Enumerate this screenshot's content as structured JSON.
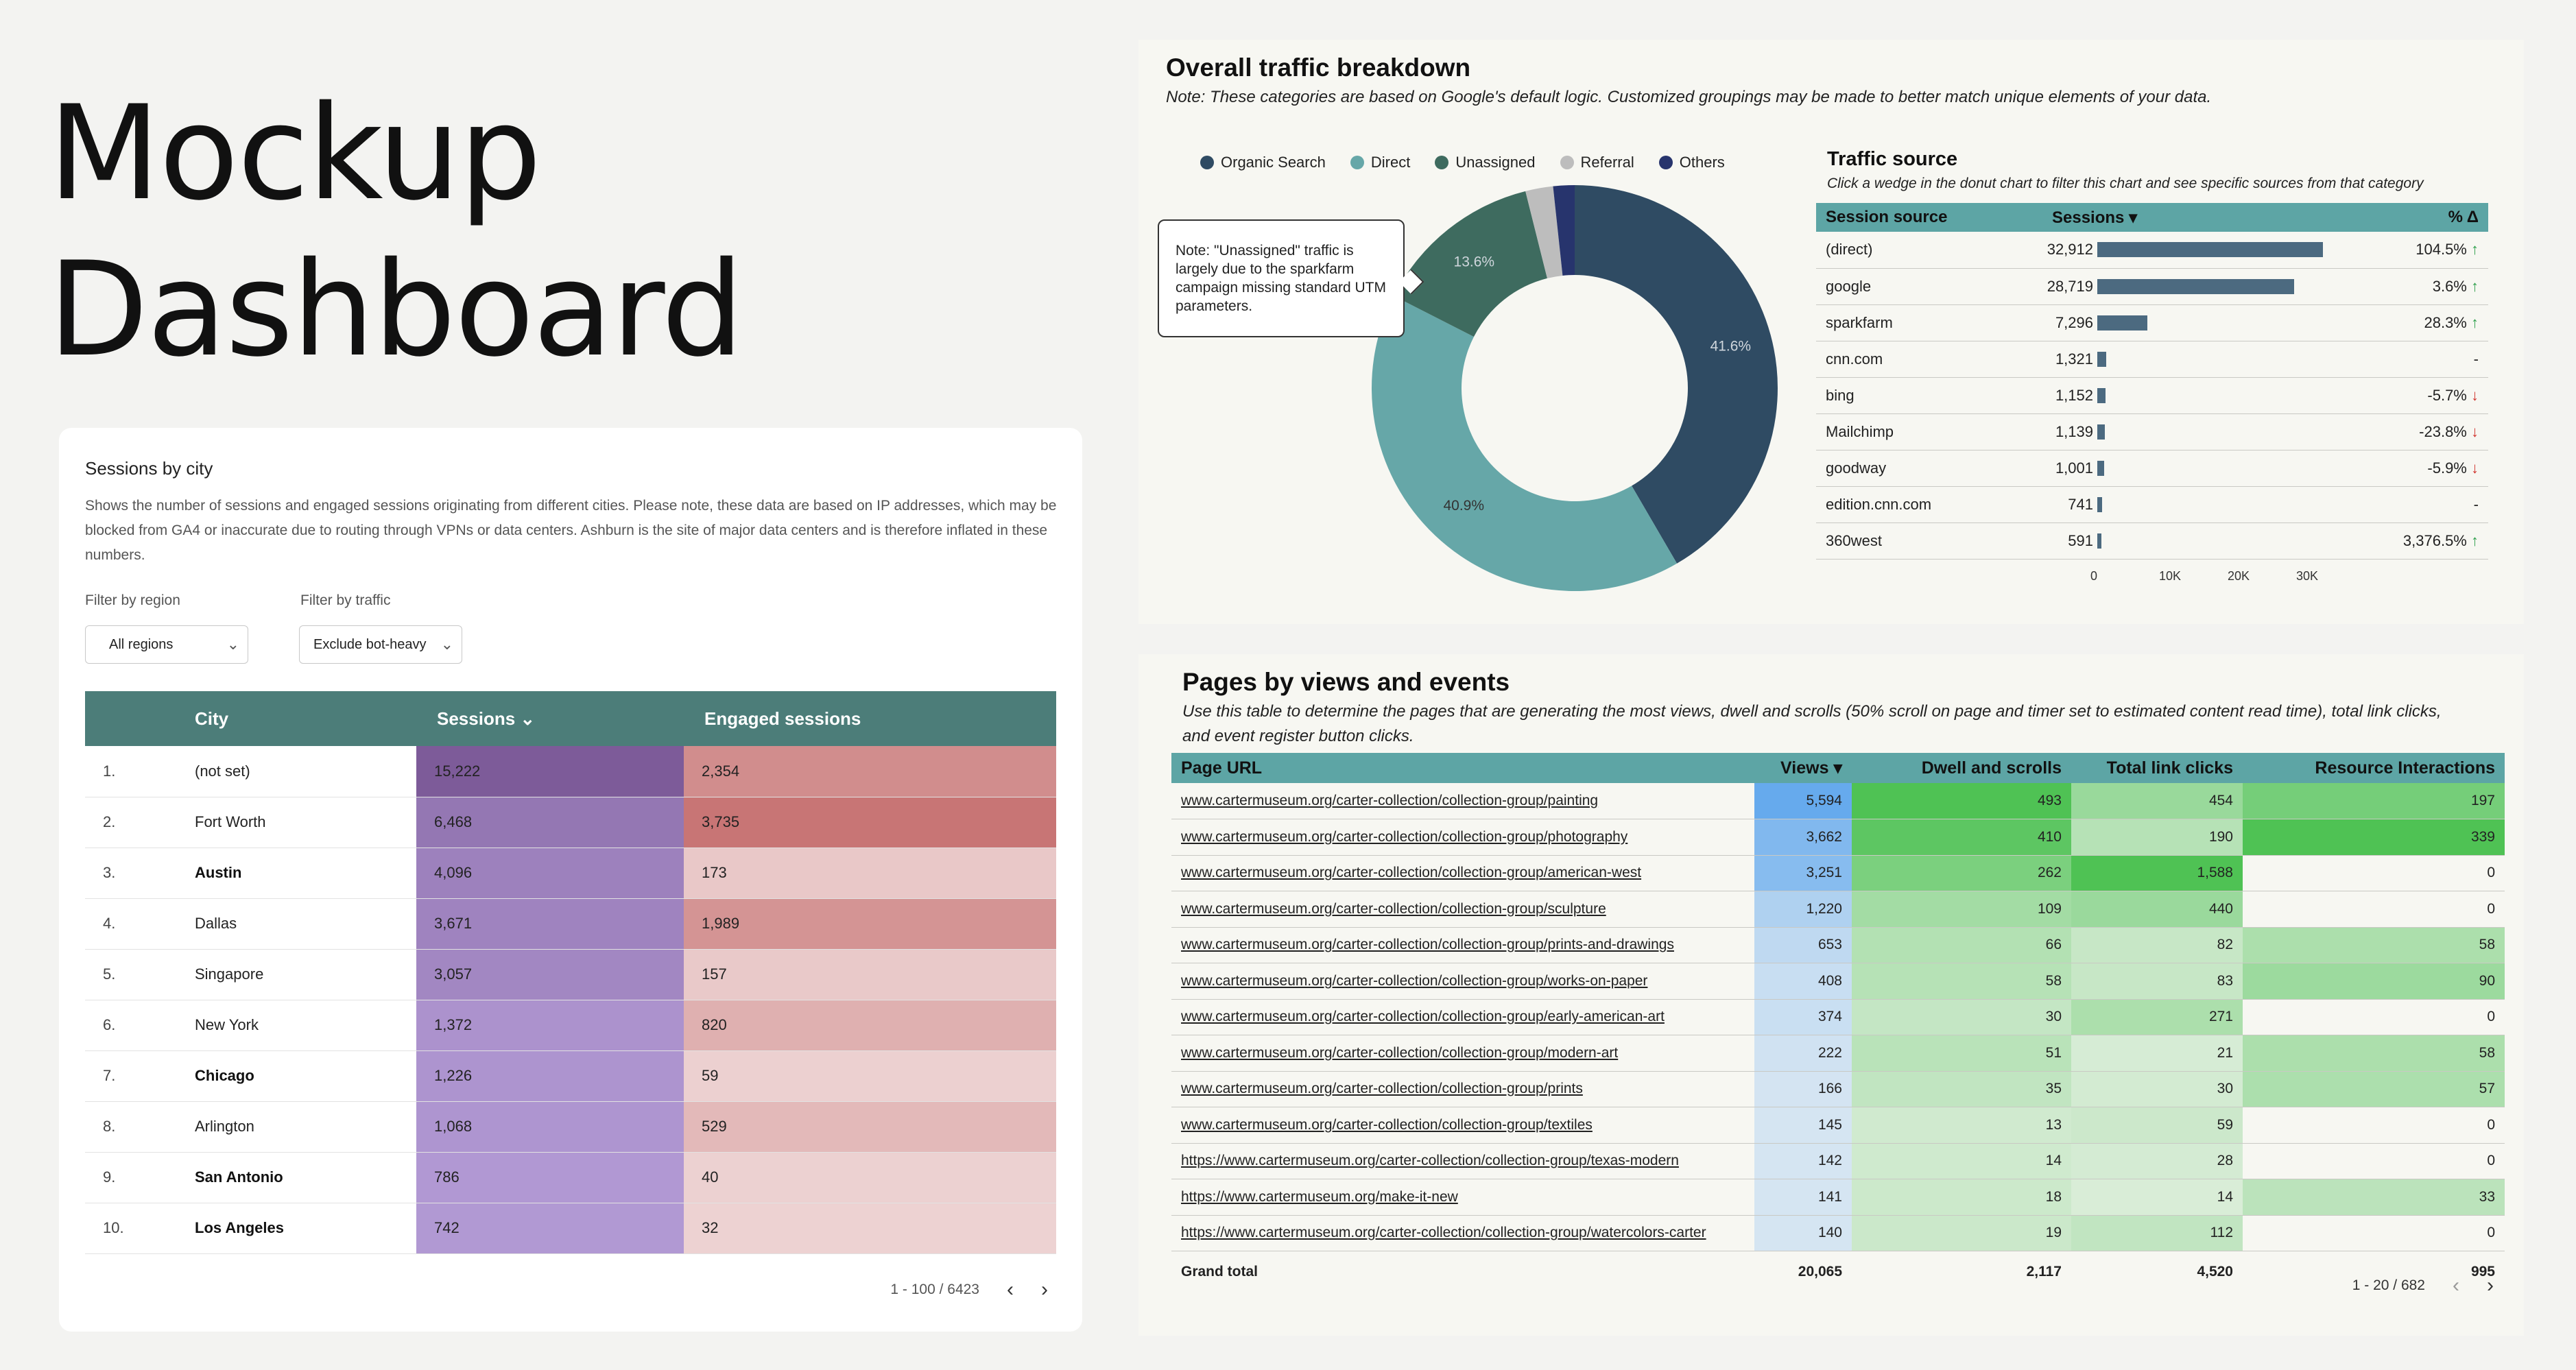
{
  "hero": {
    "line1": "Mockup",
    "line2": "Dashboard"
  },
  "city": {
    "title": "Sessions by city",
    "description": "Shows the number of sessions and engaged sessions originating from different cities. Please note, these data are based on IP addresses, which may be blocked from GA4 or inaccurate due to routing through VPNs or data centers. Ashburn is the site of major data centers and is therefore inflated in these numbers.",
    "filter_region_label": "Filter by region",
    "filter_region_value": "All regions",
    "filter_traffic_label": "Filter by traffic",
    "filter_traffic_value": "Exclude bot-heavy",
    "columns": {
      "city": "City",
      "sessions": "Sessions",
      "engaged": "Engaged sessions"
    },
    "rows": [
      {
        "num": "1.",
        "city": "(not set)",
        "sessions": "15,222",
        "engaged": "2,354",
        "bold": false
      },
      {
        "num": "2.",
        "city": "Fort Worth",
        "sessions": "6,468",
        "engaged": "3,735",
        "bold": false
      },
      {
        "num": "3.",
        "city": "Austin",
        "sessions": "4,096",
        "engaged": "173",
        "bold": true
      },
      {
        "num": "4.",
        "city": "Dallas",
        "sessions": "3,671",
        "engaged": "1,989",
        "bold": false
      },
      {
        "num": "5.",
        "city": "Singapore",
        "sessions": "3,057",
        "engaged": "157",
        "bold": false
      },
      {
        "num": "6.",
        "city": "New York",
        "sessions": "1,372",
        "engaged": "820",
        "bold": false
      },
      {
        "num": "7.",
        "city": "Chicago",
        "sessions": "1,226",
        "engaged": "59",
        "bold": true
      },
      {
        "num": "8.",
        "city": "Arlington",
        "sessions": "1,068",
        "engaged": "529",
        "bold": false
      },
      {
        "num": "9.",
        "city": "San Antonio",
        "sessions": "786",
        "engaged": "40",
        "bold": true
      },
      {
        "num": "10.",
        "city": "Los Angeles",
        "sessions": "742",
        "engaged": "32",
        "bold": true
      }
    ],
    "pagination": "1 - 100 / 6423",
    "colors": {
      "header": "#4c7d79"
    }
  },
  "traffic": {
    "title": "Overall traffic breakdown",
    "note": "Note: These categories are based on Google's default logic. Customized groupings may be made to better match unique elements of your data.",
    "callout": "Note: \"Unassigned\" traffic is largely due to the sparkfarm campaign missing standard UTM parameters.",
    "source_title": "Traffic source",
    "source_subtitle": "Click a wedge in the donut chart to filter this chart and see specific sources from that category",
    "source_columns": {
      "source": "Session source",
      "sessions": "Sessions",
      "pct": "% Δ"
    },
    "sources": [
      {
        "name": "(direct)",
        "sessions": "32,912",
        "value": 32912,
        "pct": "104.5%",
        "dir": "up"
      },
      {
        "name": "google",
        "sessions": "28,719",
        "value": 28719,
        "pct": "3.6%",
        "dir": "up"
      },
      {
        "name": "sparkfarm",
        "sessions": "7,296",
        "value": 7296,
        "pct": "28.3%",
        "dir": "up"
      },
      {
        "name": "cnn.com",
        "sessions": "1,321",
        "value": 1321,
        "pct": "-",
        "dir": ""
      },
      {
        "name": "bing",
        "sessions": "1,152",
        "value": 1152,
        "pct": "-5.7%",
        "dir": "down"
      },
      {
        "name": "Mailchimp",
        "sessions": "1,139",
        "value": 1139,
        "pct": "-23.8%",
        "dir": "down"
      },
      {
        "name": "goodway",
        "sessions": "1,001",
        "value": 1001,
        "pct": "-5.9%",
        "dir": "down"
      },
      {
        "name": "edition.cnn.com",
        "sessions": "741",
        "value": 741,
        "pct": "-",
        "dir": ""
      },
      {
        "name": "360west",
        "sessions": "591",
        "value": 591,
        "pct": "3,376.5%",
        "dir": "up"
      }
    ],
    "axis_ticks": [
      "0",
      "10K",
      "20K",
      "30K"
    ],
    "axis_max": 40000
  },
  "chart_data": {
    "type": "pie",
    "title": "Overall traffic breakdown",
    "categories": [
      "Organic Search",
      "Direct",
      "Unassigned",
      "Referral",
      "Others"
    ],
    "values": [
      41.6,
      40.9,
      13.6,
      2.2,
      1.7
    ],
    "labels": [
      "41.6%",
      "40.9%",
      "13.6%",
      "",
      ""
    ],
    "colors": [
      "#2f4b63",
      "#66a7a8",
      "#3e6b5f",
      "#bdbdbd",
      "#27346d"
    ],
    "legend": "top"
  },
  "pages": {
    "title": "Pages by views and events",
    "note": "Use this table to determine the pages that are generating the most views, dwell and scrolls (50% scroll on page and timer set to estimated content read time), total link clicks, and event register button clicks.",
    "columns": {
      "url": "Page URL",
      "views": "Views",
      "dwell": "Dwell and scrolls",
      "clicks": "Total link clicks",
      "resource": "Resource Interactions"
    },
    "rows": [
      {
        "url": "www.cartermuseum.org/carter-collection/collection-group/painting",
        "views": "5,594",
        "v": 5594,
        "dwell": "493",
        "d": 493,
        "clicks": "454",
        "c": 454,
        "resource": "197",
        "r": 197
      },
      {
        "url": "www.cartermuseum.org/carter-collection/collection-group/photography",
        "views": "3,662",
        "v": 3662,
        "dwell": "410",
        "d": 410,
        "clicks": "190",
        "c": 190,
        "resource": "339",
        "r": 339
      },
      {
        "url": "www.cartermuseum.org/carter-collection/collection-group/american-west",
        "views": "3,251",
        "v": 3251,
        "dwell": "262",
        "d": 262,
        "clicks": "1,588",
        "c": 1588,
        "resource": "0",
        "r": 0
      },
      {
        "url": "www.cartermuseum.org/carter-collection/collection-group/sculpture",
        "views": "1,220",
        "v": 1220,
        "dwell": "109",
        "d": 109,
        "clicks": "440",
        "c": 440,
        "resource": "0",
        "r": 0
      },
      {
        "url": "www.cartermuseum.org/carter-collection/collection-group/prints-and-drawings",
        "views": "653",
        "v": 653,
        "dwell": "66",
        "d": 66,
        "clicks": "82",
        "c": 82,
        "resource": "58",
        "r": 58
      },
      {
        "url": "www.cartermuseum.org/carter-collection/collection-group/works-on-paper",
        "views": "408",
        "v": 408,
        "dwell": "58",
        "d": 58,
        "clicks": "83",
        "c": 83,
        "resource": "90",
        "r": 90
      },
      {
        "url": "www.cartermuseum.org/carter-collection/collection-group/early-american-art",
        "views": "374",
        "v": 374,
        "dwell": "30",
        "d": 30,
        "clicks": "271",
        "c": 271,
        "resource": "0",
        "r": 0
      },
      {
        "url": "www.cartermuseum.org/carter-collection/collection-group/modern-art",
        "views": "222",
        "v": 222,
        "dwell": "51",
        "d": 51,
        "clicks": "21",
        "c": 21,
        "resource": "58",
        "r": 58
      },
      {
        "url": "www.cartermuseum.org/carter-collection/collection-group/prints",
        "views": "166",
        "v": 166,
        "dwell": "35",
        "d": 35,
        "clicks": "30",
        "c": 30,
        "resource": "57",
        "r": 57
      },
      {
        "url": "www.cartermuseum.org/carter-collection/collection-group/textiles",
        "views": "145",
        "v": 145,
        "dwell": "13",
        "d": 13,
        "clicks": "59",
        "c": 59,
        "resource": "0",
        "r": 0
      },
      {
        "url": "https://www.cartermuseum.org/carter-collection/collection-group/texas-modern",
        "views": "142",
        "v": 142,
        "dwell": "14",
        "d": 14,
        "clicks": "28",
        "c": 28,
        "resource": "0",
        "r": 0
      },
      {
        "url": "https://www.cartermuseum.org/make-it-new",
        "views": "141",
        "v": 141,
        "dwell": "18",
        "d": 18,
        "clicks": "14",
        "c": 14,
        "resource": "33",
        "r": 33
      },
      {
        "url": "https://www.cartermuseum.org/carter-collection/collection-group/watercolors-carter",
        "views": "140",
        "v": 140,
        "dwell": "19",
        "d": 19,
        "clicks": "112",
        "c": 112,
        "resource": "0",
        "r": 0
      }
    ],
    "total": {
      "label": "Grand total",
      "views": "20,065",
      "dwell": "2,117",
      "clicks": "4,520",
      "resource": "995"
    },
    "pagination": "1 - 20 / 682"
  }
}
